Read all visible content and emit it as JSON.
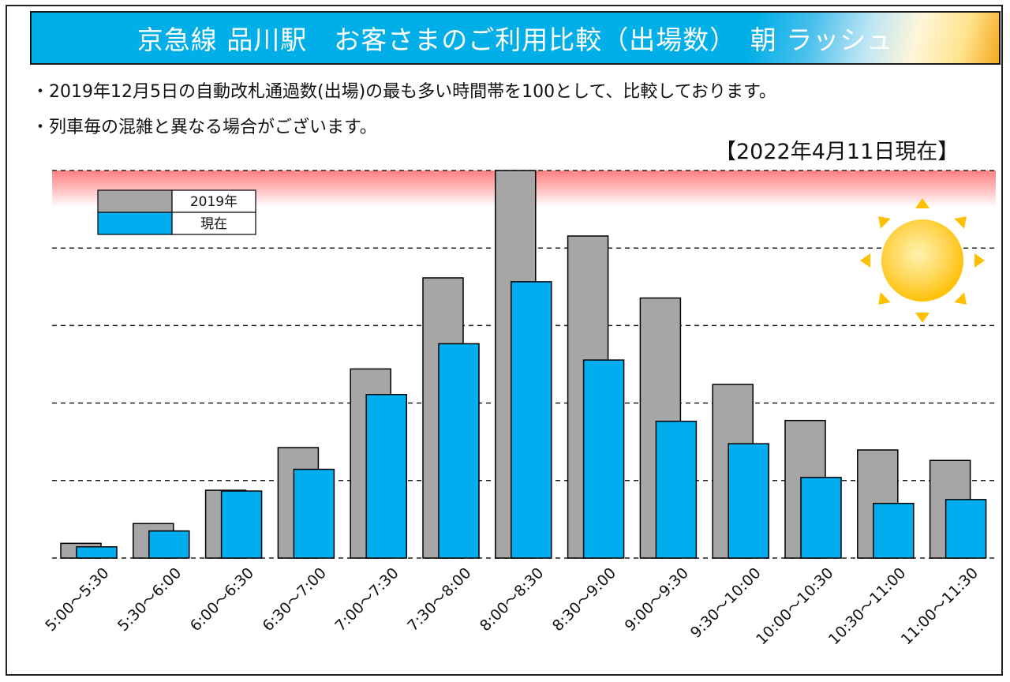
{
  "page": {
    "title": "京急線 品川駅　お客さまのご利用比較（出場数）　朝 ラッシュ",
    "note1": "・2019年12月5日の自動改札通過数(出場)の最も多い時間帯を100として、比較しております。",
    "note2": "・列車毎の混雑と異なる場合がございます。",
    "as_of": "【2022年4月11日現在】"
  },
  "colors": {
    "series_2019": "#a6a6a6",
    "series_now": "#00aeef",
    "title_bg": "#00aee8",
    "peak_band": "#ff8080",
    "sun": "#ffc000"
  },
  "chart_data": {
    "type": "bar",
    "title": "京急線 品川駅　お客さまのご利用比較（出場数）　朝 ラッシュ",
    "categories": [
      "5:00～5:30",
      "5:30～6:00",
      "6:00～6:30",
      "6:30～7:00",
      "7:00～7:30",
      "7:30～8:00",
      "8:00～8:30",
      "8:30～9:00",
      "9:00～9:30",
      "9:30～10:00",
      "10:00～10:30",
      "10:30～11:00",
      "11:00～11:30"
    ],
    "series": [
      {
        "name": "2019年",
        "values": [
          3.8,
          8.9,
          17.5,
          28.5,
          48.8,
          72.3,
          100,
          83.1,
          67.1,
          44.8,
          35.5,
          27.9,
          25.2
        ]
      },
      {
        "name": "現在",
        "values": [
          2.9,
          7.0,
          17.3,
          22.9,
          42.2,
          55.3,
          71.3,
          51.1,
          35.3,
          29.5,
          20.8,
          14.1,
          15.1
        ]
      }
    ],
    "ylim": [
      0,
      100
    ],
    "gridlines": [
      20,
      40,
      60,
      80,
      100
    ],
    "ylabel": "",
    "xlabel": "",
    "legend": "top-left"
  }
}
